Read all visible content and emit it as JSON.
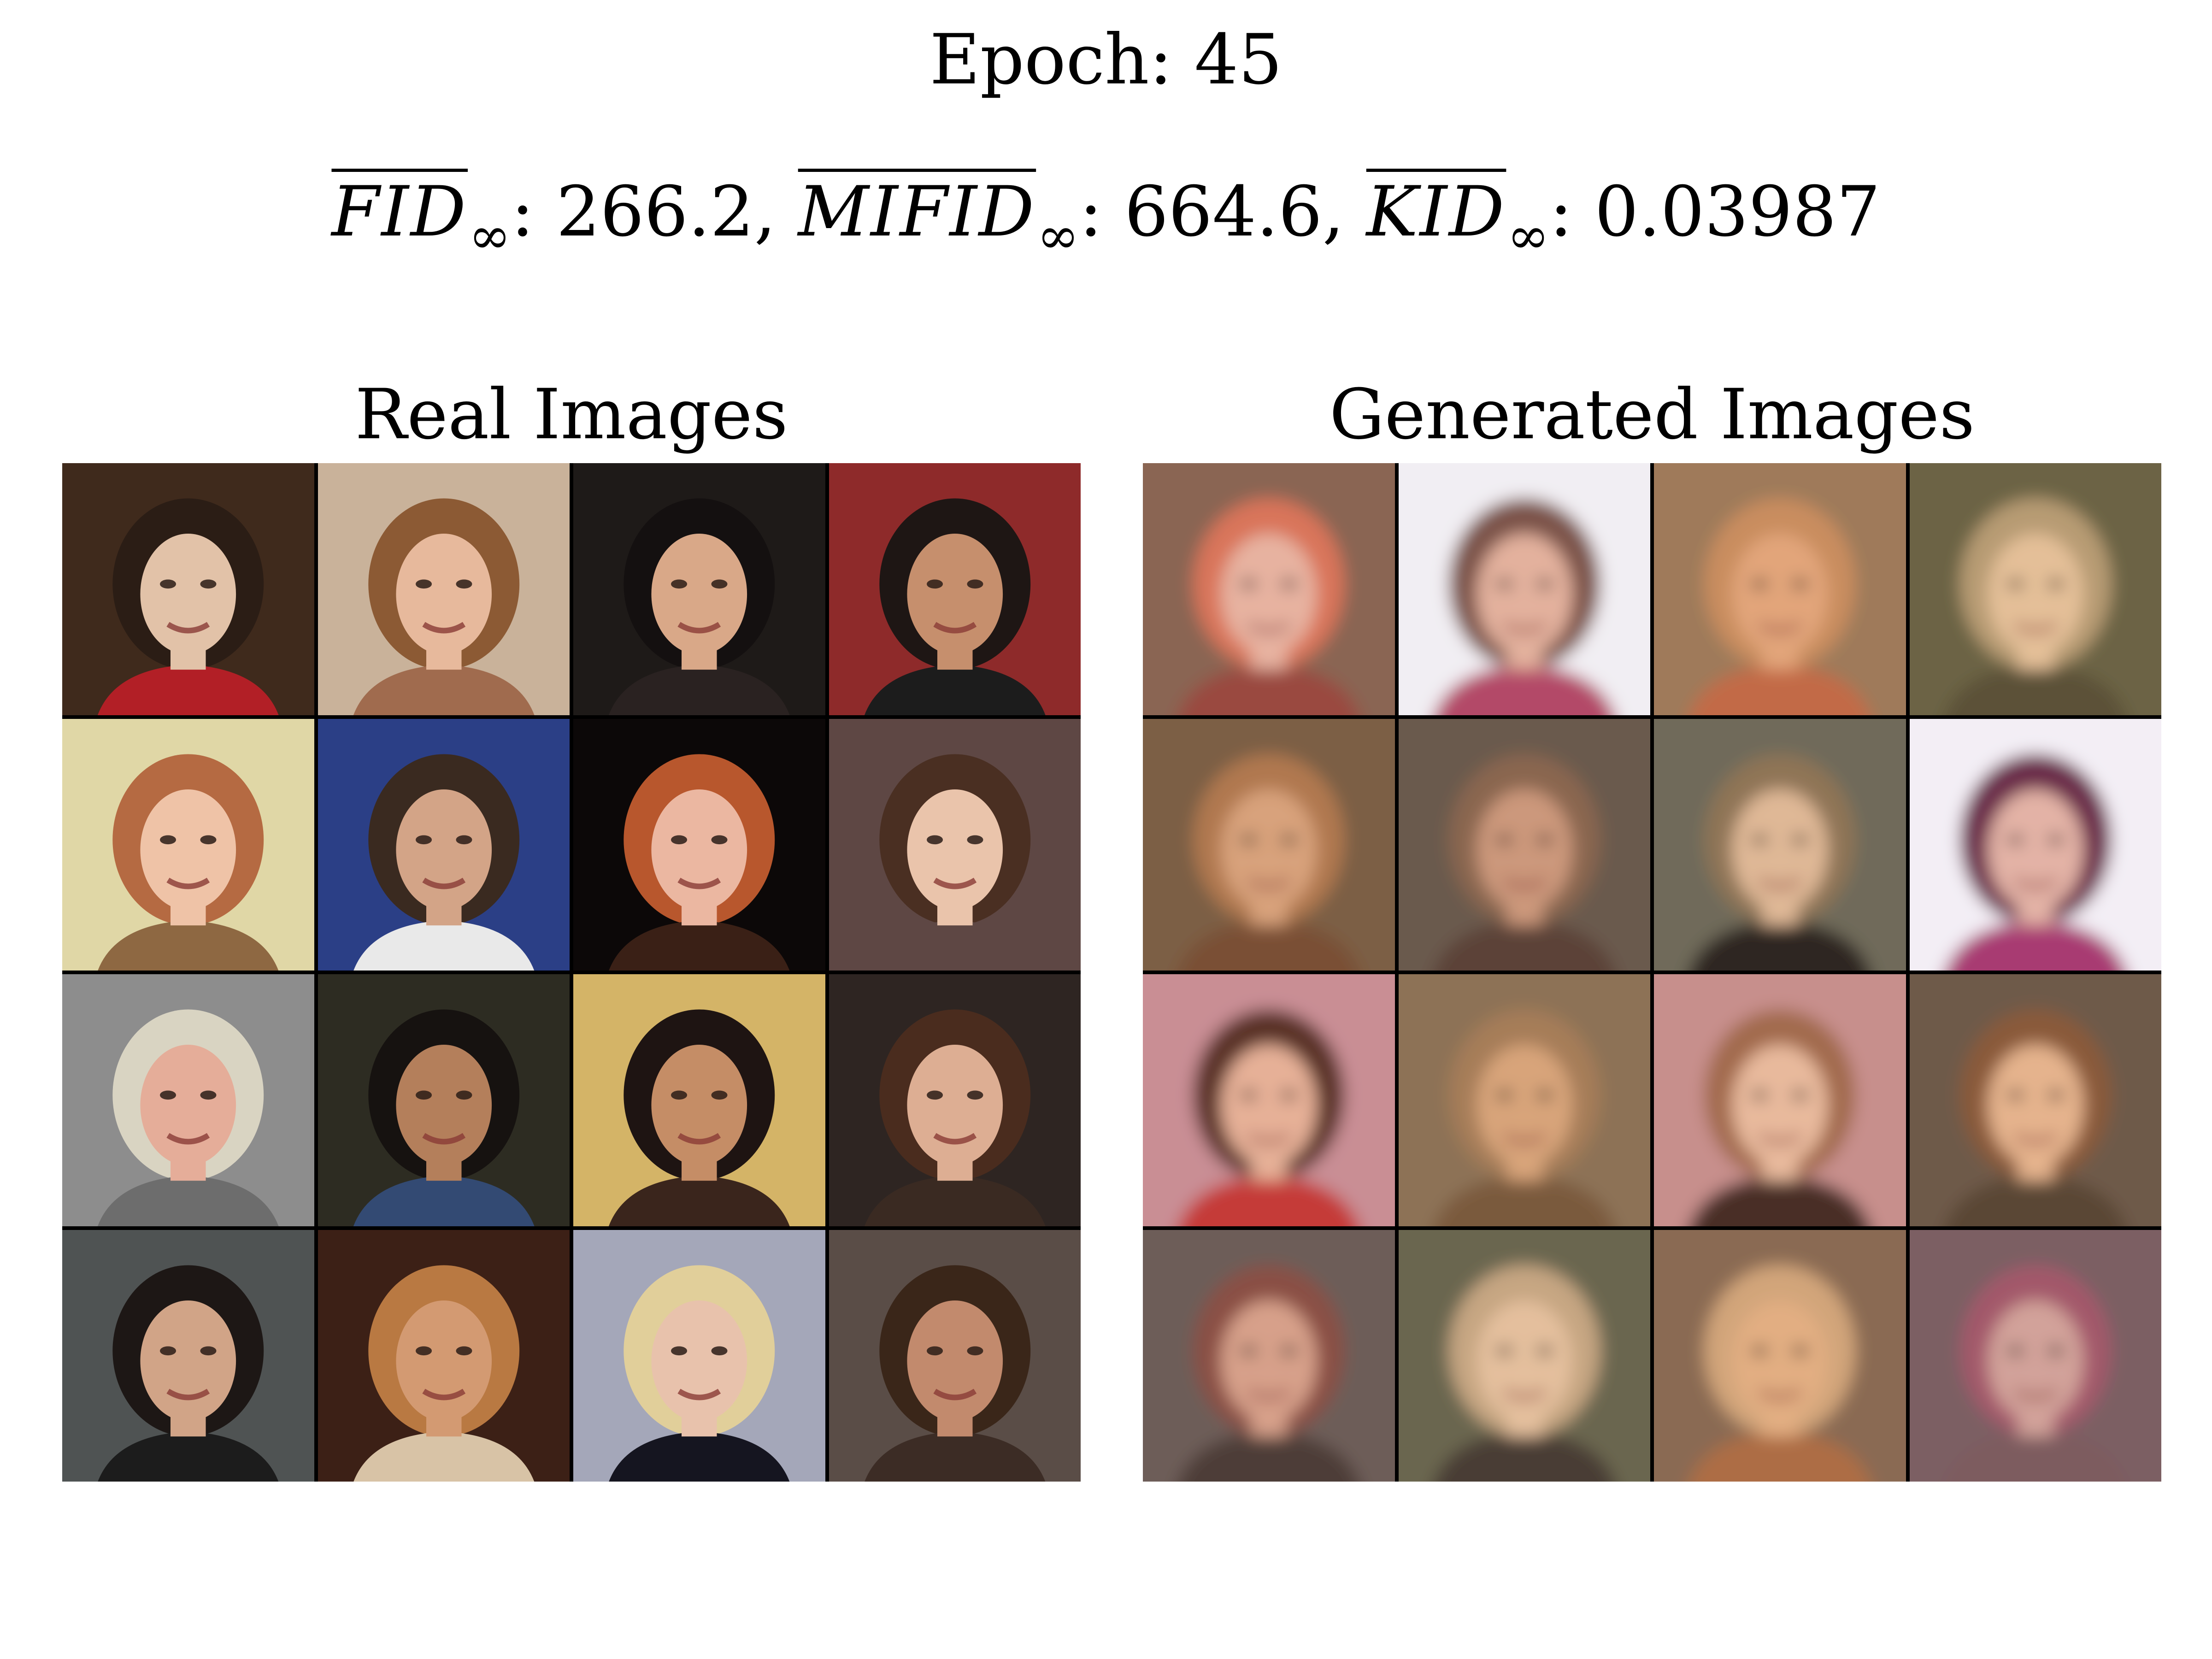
{
  "figure": {
    "epoch_label": "Epoch: 45",
    "metrics": [
      {
        "name": "FID",
        "subscript": "∞",
        "value": "266.2",
        "separator": ","
      },
      {
        "name": "MIFID",
        "subscript": "∞",
        "value": "664.6",
        "separator": ","
      },
      {
        "name": "KID",
        "subscript": "∞",
        "value": "0.03987",
        "separator": ""
      }
    ]
  },
  "panels": {
    "real": {
      "title": "Real Images",
      "blur": false,
      "tiles": [
        {
          "bg": "#3f2a1c",
          "face": "#e2c2a8",
          "hair": "#2b1d15",
          "cloth": "#b21f26"
        },
        {
          "bg": "#c9b29a",
          "face": "#e7b99c",
          "hair": "#8c5a34",
          "cloth": "#a06b4e"
        },
        {
          "bg": "#1e1a18",
          "face": "#d9a888",
          "hair": "#141010",
          "cloth": "#2a2221"
        },
        {
          "bg": "#8e2a2a",
          "face": "#c68f6d",
          "hair": "#1e1614",
          "cloth": "#1c1c1c"
        },
        {
          "bg": "#e0d7a6",
          "face": "#efc3a7",
          "hair": "#b56a42",
          "cloth": "#8e6842"
        },
        {
          "bg": "#2b3f86",
          "face": "#d3a487",
          "hair": "#3a2a20",
          "cloth": "#e9e9e9"
        },
        {
          "bg": "#0c0808",
          "face": "#ebb7a1",
          "hair": "#b8572d",
          "cloth": "#3a2016"
        },
        {
          "bg": "#5e4744",
          "face": "#eac4ab",
          "hair": "#4a2f22",
          "cloth": "#5e4744"
        },
        {
          "bg": "#8d8d8d",
          "face": "#e5ad99",
          "hair": "#d9d4c2",
          "cloth": "#6d6d6d"
        },
        {
          "bg": "#2d2c22",
          "face": "#b47f5b",
          "hair": "#161210",
          "cloth": "#334a73"
        },
        {
          "bg": "#d4b467",
          "face": "#c58d66",
          "hair": "#1e1412",
          "cloth": "#3a251c"
        },
        {
          "bg": "#2e2522",
          "face": "#ddae93",
          "hair": "#4a2c1e",
          "cloth": "#3a2a22"
        },
        {
          "bg": "#4f5353",
          "face": "#d1a487",
          "hair": "#1d1715",
          "cloth": "#1c1c1c"
        },
        {
          "bg": "#3c2016",
          "face": "#d39a72",
          "hair": "#b97942",
          "cloth": "#d8c3a6"
        },
        {
          "bg": "#a4a7b9",
          "face": "#e8c2ac",
          "hair": "#e1cf9a",
          "cloth": "#151520"
        },
        {
          "bg": "#5a4d47",
          "face": "#c28a6d",
          "hair": "#3a2619",
          "cloth": "#3c2c25"
        }
      ]
    },
    "generated": {
      "title": "Generated Images",
      "blur": true,
      "tiles": [
        {
          "bg": "#8a6553",
          "face": "#e7b2a0",
          "hair": "#d9745a",
          "cloth": "#9a4940"
        },
        {
          "bg": "#f1eef3",
          "face": "#e3b19d",
          "hair": "#7b5348",
          "cloth": "#b34a68"
        },
        {
          "bg": "#9f7a5a",
          "face": "#e2a57a",
          "hair": "#c98d5e",
          "cloth": "#c26b46"
        },
        {
          "bg": "#6c6345",
          "face": "#e4bf98",
          "hair": "#b79b73",
          "cloth": "#5b5138"
        },
        {
          "bg": "#7b5e45",
          "face": "#d8a27b",
          "hair": "#b07850",
          "cloth": "#7a5036"
        },
        {
          "bg": "#6a5a4d",
          "face": "#cc987b",
          "hair": "#8a6650",
          "cloth": "#5b4339"
        },
        {
          "bg": "#6f6a5a",
          "face": "#dfb896",
          "hair": "#8f7456",
          "cloth": "#2f2823"
        },
        {
          "bg": "#f3eef5",
          "face": "#e3b2a6",
          "hair": "#6a2c4a",
          "cloth": "#a83a72"
        },
        {
          "bg": "#c98e94",
          "face": "#e6b097",
          "hair": "#5a3028",
          "cloth": "#c53b39"
        },
        {
          "bg": "#8d7257",
          "face": "#d8a47a",
          "hair": "#a67d58",
          "cloth": "#7a5a3e"
        },
        {
          "bg": "#c78f8c",
          "face": "#e8b99c",
          "hair": "#a26a4d",
          "cloth": "#4a2e26"
        },
        {
          "bg": "#6e5a4a",
          "face": "#e5b38d",
          "hair": "#8a5a3a",
          "cloth": "#5a4636"
        },
        {
          "bg": "#6d5d59",
          "face": "#d7a08a",
          "hair": "#8a4f45",
          "cloth": "#4e3d38"
        },
        {
          "bg": "#6b6650",
          "face": "#e4bf9d",
          "hair": "#c6a682",
          "cloth": "#4a3e34"
        },
        {
          "bg": "#8a6a52",
          "face": "#e2ae82",
          "hair": "#d2a57a",
          "cloth": "#ad6d45"
        },
        {
          "bg": "#7c5f63",
          "face": "#d2a29a",
          "hair": "#a3586a",
          "cloth": "#7d5b5f"
        }
      ]
    }
  }
}
